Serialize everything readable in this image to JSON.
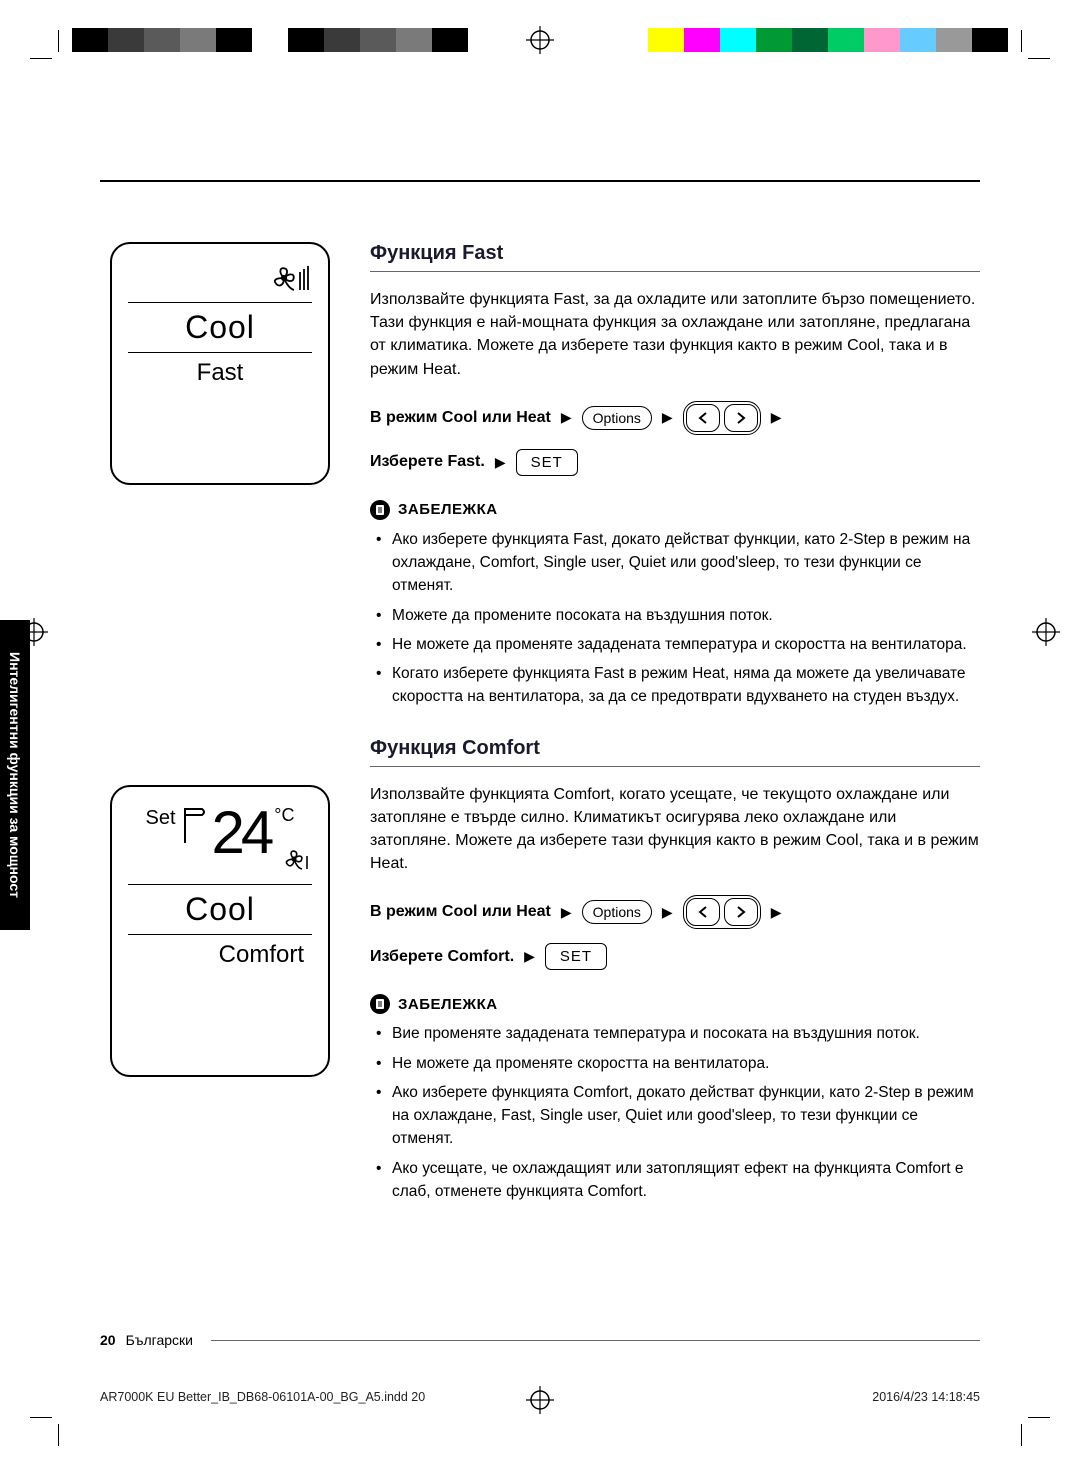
{
  "color_strip": {
    "left": [
      "#000000",
      "#3a3a3a",
      "#5a5a5a",
      "#7a7a7a",
      "#000000",
      "#ffffff",
      "#000000",
      "#3a3a3a",
      "#5a5a5a",
      "#7a7a7a",
      "#000000"
    ],
    "right": [
      "#ffff00",
      "#ff00ff",
      "#00ffff",
      "#009933",
      "#006633",
      "#00cc66",
      "#ff99cc",
      "#66ccff",
      "#999999",
      "#000000"
    ]
  },
  "side_tab": "Интелигентни функции за мощност",
  "remote1": {
    "mode": "Cool",
    "sub": "Fast"
  },
  "remote2": {
    "set": "Set",
    "temp": "24",
    "unit": "°C",
    "mode": "Cool",
    "sub": "Comfort"
  },
  "fast": {
    "title": "Функция Fast",
    "body": "Използвайте функцията Fast, за да охладите или затоплите бързо помещението. Тази функция е най-мощната функция за охлаждане или затопляне, предлагана от климатика. Можете да изберете тази функция както в режим Cool, така и в режим Heat.",
    "step1_label": "В режим Cool или Heat",
    "step2_label": "Изберете Fast.",
    "options_btn": "Options",
    "set_btn": "SET",
    "note_head": "ЗАБЕЛЕЖКА",
    "notes": [
      "Ако изберете функцията Fast, докато действат функции, като 2-Step в режим на охлаждане, Comfort, Single user, Quiet или good'sleep, то тези функции се отменят.",
      "Можете да промените посоката на въздушния поток.",
      "Не можете да променяте зададената температура и скоростта на вентилатора.",
      "Когато изберете функцията Fast в режим Heat, няма да можете да увеличавате скоростта на вентилатора, за да се предотврати вдухването на студен въздух."
    ]
  },
  "comfort": {
    "title": "Функция Comfort",
    "body": "Използвайте функцията Comfort, когато усещате, че текущото охлаждане или затопляне е твърде силно. Климатикът осигурява леко охлаждане или затопляне. Можете да изберете тази функция както в режим Cool, така и в режим Heat.",
    "step1_label": "В режим Cool или Heat",
    "step2_label": "Изберете Comfort.",
    "options_btn": "Options",
    "set_btn": "SET",
    "note_head": "ЗАБЕЛЕЖКА",
    "notes": [
      "Вие променяте зададената температура и посоката на въздушния поток.",
      "Не можете да променяте скоростта на вентилатора.",
      "Ако изберете функцията Comfort, докато действат функции, като 2-Step в режим на охлаждане, Fast, Single user, Quiet или good'sleep, то тези функции се отменят.",
      "Ако усещате, че охлаждащият или затоплящият ефект на функцията Comfort е слаб, отменете функцията Comfort."
    ]
  },
  "footer": {
    "page_number": "20",
    "lang": "Български"
  },
  "print": {
    "file": "AR7000K EU Better_IB_DB68-06101A-00_BG_A5.indd   20",
    "date": "2016/4/23   14:18:45"
  },
  "labels": {
    "arrow": "▶"
  }
}
